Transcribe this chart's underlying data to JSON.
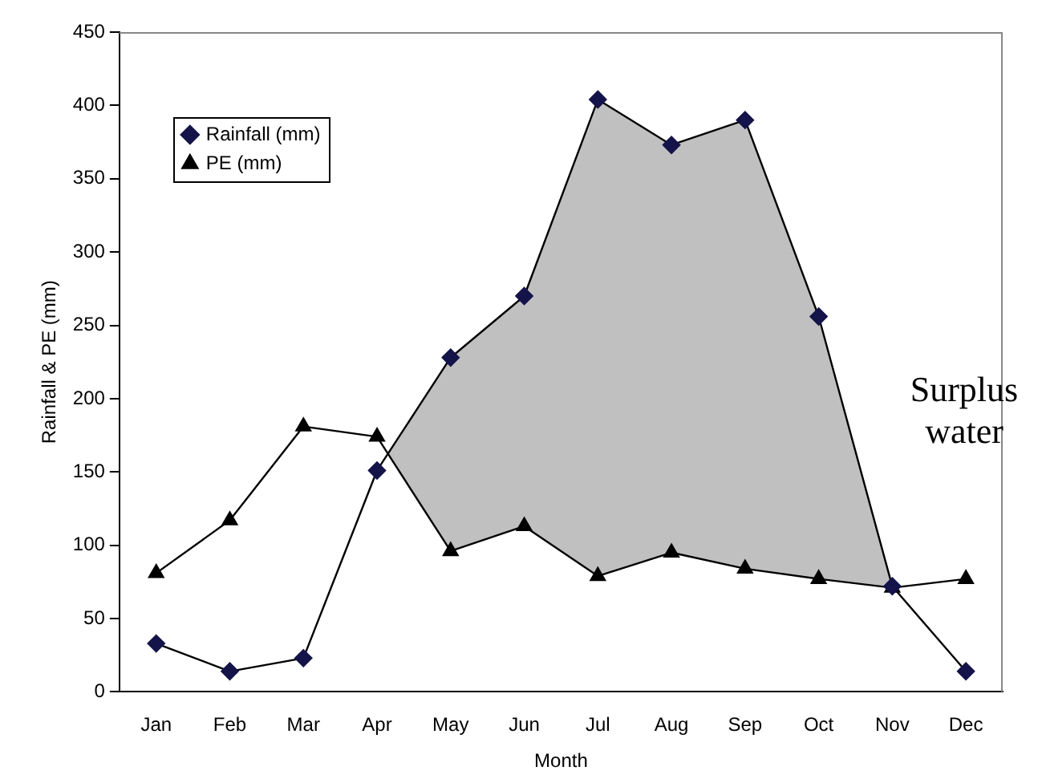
{
  "chart_data": {
    "type": "line",
    "xlabel": "Month",
    "ylabel": "Rainfall & PE (mm)",
    "categories": [
      "Jan",
      "Feb",
      "Mar",
      "Apr",
      "May",
      "Jun",
      "Jul",
      "Aug",
      "Sep",
      "Oct",
      "Nov",
      "Dec"
    ],
    "series": [
      {
        "name": "Rainfall (mm)",
        "marker": "diamond",
        "color": "#14144a",
        "values": [
          33,
          14,
          23,
          151,
          228,
          270,
          404,
          373,
          390,
          256,
          72,
          14
        ],
        "lower": [
          81,
          117,
          181,
          174,
          96,
          113,
          79,
          95,
          84,
          77,
          71,
          77
        ],
        "upper": [
          33,
          14,
          23,
          151,
          228,
          270,
          404,
          373,
          390,
          256,
          72,
          14
        ]
      },
      {
        "name": "PE (mm)",
        "marker": "triangle",
        "color": "#000000",
        "values": [
          81,
          117,
          181,
          174,
          96,
          113,
          79,
          95,
          84,
          77,
          71,
          77
        ]
      }
    ],
    "ylim": [
      0,
      450
    ],
    "yticks": [
      0,
      50,
      100,
      150,
      200,
      250,
      300,
      350,
      400,
      450
    ],
    "grid": false,
    "legend": "top left",
    "annotations": [
      "Surplus water"
    ]
  }
}
